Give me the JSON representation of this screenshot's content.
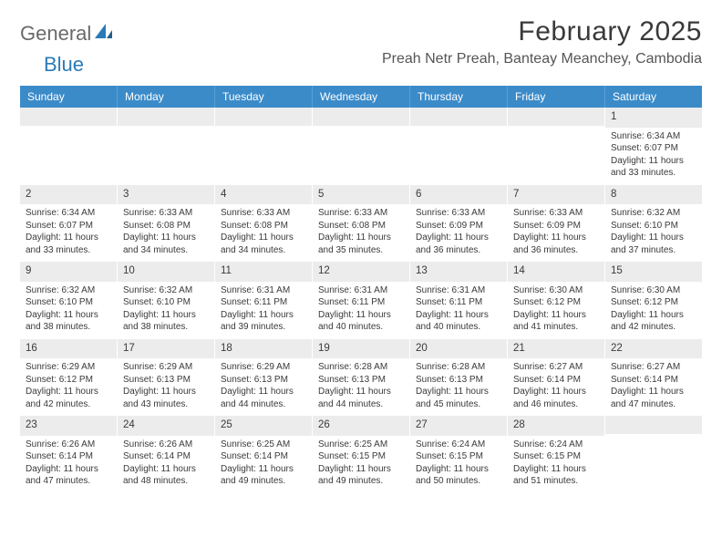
{
  "logo": {
    "text1": "General",
    "text2": "Blue"
  },
  "title": "February 2025",
  "subtitle": "Preah Netr Preah, Banteay Meanchey, Cambodia",
  "colors": {
    "header_bg": "#3b8bc9",
    "header_text": "#ffffff",
    "daynum_bg": "#ececec",
    "body_text": "#3a3a3a",
    "logo_gray": "#6a6a6a",
    "logo_blue": "#2a7ab8",
    "page_bg": "#ffffff"
  },
  "typography": {
    "title_fontsize": 30,
    "subtitle_fontsize": 16,
    "dayhead_fontsize": 12,
    "cell_fontsize": 10
  },
  "layout": {
    "columns": 7,
    "rows": 5
  },
  "day_names": [
    "Sunday",
    "Monday",
    "Tuesday",
    "Wednesday",
    "Thursday",
    "Friday",
    "Saturday"
  ],
  "weeks": [
    [
      {
        "day": "",
        "lines": []
      },
      {
        "day": "",
        "lines": []
      },
      {
        "day": "",
        "lines": []
      },
      {
        "day": "",
        "lines": []
      },
      {
        "day": "",
        "lines": []
      },
      {
        "day": "",
        "lines": []
      },
      {
        "day": "1",
        "lines": [
          "Sunrise: 6:34 AM",
          "Sunset: 6:07 PM",
          "Daylight: 11 hours and 33 minutes."
        ]
      }
    ],
    [
      {
        "day": "2",
        "lines": [
          "Sunrise: 6:34 AM",
          "Sunset: 6:07 PM",
          "Daylight: 11 hours and 33 minutes."
        ]
      },
      {
        "day": "3",
        "lines": [
          "Sunrise: 6:33 AM",
          "Sunset: 6:08 PM",
          "Daylight: 11 hours and 34 minutes."
        ]
      },
      {
        "day": "4",
        "lines": [
          "Sunrise: 6:33 AM",
          "Sunset: 6:08 PM",
          "Daylight: 11 hours and 34 minutes."
        ]
      },
      {
        "day": "5",
        "lines": [
          "Sunrise: 6:33 AM",
          "Sunset: 6:08 PM",
          "Daylight: 11 hours and 35 minutes."
        ]
      },
      {
        "day": "6",
        "lines": [
          "Sunrise: 6:33 AM",
          "Sunset: 6:09 PM",
          "Daylight: 11 hours and 36 minutes."
        ]
      },
      {
        "day": "7",
        "lines": [
          "Sunrise: 6:33 AM",
          "Sunset: 6:09 PM",
          "Daylight: 11 hours and 36 minutes."
        ]
      },
      {
        "day": "8",
        "lines": [
          "Sunrise: 6:32 AM",
          "Sunset: 6:10 PM",
          "Daylight: 11 hours and 37 minutes."
        ]
      }
    ],
    [
      {
        "day": "9",
        "lines": [
          "Sunrise: 6:32 AM",
          "Sunset: 6:10 PM",
          "Daylight: 11 hours and 38 minutes."
        ]
      },
      {
        "day": "10",
        "lines": [
          "Sunrise: 6:32 AM",
          "Sunset: 6:10 PM",
          "Daylight: 11 hours and 38 minutes."
        ]
      },
      {
        "day": "11",
        "lines": [
          "Sunrise: 6:31 AM",
          "Sunset: 6:11 PM",
          "Daylight: 11 hours and 39 minutes."
        ]
      },
      {
        "day": "12",
        "lines": [
          "Sunrise: 6:31 AM",
          "Sunset: 6:11 PM",
          "Daylight: 11 hours and 40 minutes."
        ]
      },
      {
        "day": "13",
        "lines": [
          "Sunrise: 6:31 AM",
          "Sunset: 6:11 PM",
          "Daylight: 11 hours and 40 minutes."
        ]
      },
      {
        "day": "14",
        "lines": [
          "Sunrise: 6:30 AM",
          "Sunset: 6:12 PM",
          "Daylight: 11 hours and 41 minutes."
        ]
      },
      {
        "day": "15",
        "lines": [
          "Sunrise: 6:30 AM",
          "Sunset: 6:12 PM",
          "Daylight: 11 hours and 42 minutes."
        ]
      }
    ],
    [
      {
        "day": "16",
        "lines": [
          "Sunrise: 6:29 AM",
          "Sunset: 6:12 PM",
          "Daylight: 11 hours and 42 minutes."
        ]
      },
      {
        "day": "17",
        "lines": [
          "Sunrise: 6:29 AM",
          "Sunset: 6:13 PM",
          "Daylight: 11 hours and 43 minutes."
        ]
      },
      {
        "day": "18",
        "lines": [
          "Sunrise: 6:29 AM",
          "Sunset: 6:13 PM",
          "Daylight: 11 hours and 44 minutes."
        ]
      },
      {
        "day": "19",
        "lines": [
          "Sunrise: 6:28 AM",
          "Sunset: 6:13 PM",
          "Daylight: 11 hours and 44 minutes."
        ]
      },
      {
        "day": "20",
        "lines": [
          "Sunrise: 6:28 AM",
          "Sunset: 6:13 PM",
          "Daylight: 11 hours and 45 minutes."
        ]
      },
      {
        "day": "21",
        "lines": [
          "Sunrise: 6:27 AM",
          "Sunset: 6:14 PM",
          "Daylight: 11 hours and 46 minutes."
        ]
      },
      {
        "day": "22",
        "lines": [
          "Sunrise: 6:27 AM",
          "Sunset: 6:14 PM",
          "Daylight: 11 hours and 47 minutes."
        ]
      }
    ],
    [
      {
        "day": "23",
        "lines": [
          "Sunrise: 6:26 AM",
          "Sunset: 6:14 PM",
          "Daylight: 11 hours and 47 minutes."
        ]
      },
      {
        "day": "24",
        "lines": [
          "Sunrise: 6:26 AM",
          "Sunset: 6:14 PM",
          "Daylight: 11 hours and 48 minutes."
        ]
      },
      {
        "day": "25",
        "lines": [
          "Sunrise: 6:25 AM",
          "Sunset: 6:14 PM",
          "Daylight: 11 hours and 49 minutes."
        ]
      },
      {
        "day": "26",
        "lines": [
          "Sunrise: 6:25 AM",
          "Sunset: 6:15 PM",
          "Daylight: 11 hours and 49 minutes."
        ]
      },
      {
        "day": "27",
        "lines": [
          "Sunrise: 6:24 AM",
          "Sunset: 6:15 PM",
          "Daylight: 11 hours and 50 minutes."
        ]
      },
      {
        "day": "28",
        "lines": [
          "Sunrise: 6:24 AM",
          "Sunset: 6:15 PM",
          "Daylight: 11 hours and 51 minutes."
        ]
      },
      {
        "day": "",
        "lines": []
      }
    ]
  ]
}
